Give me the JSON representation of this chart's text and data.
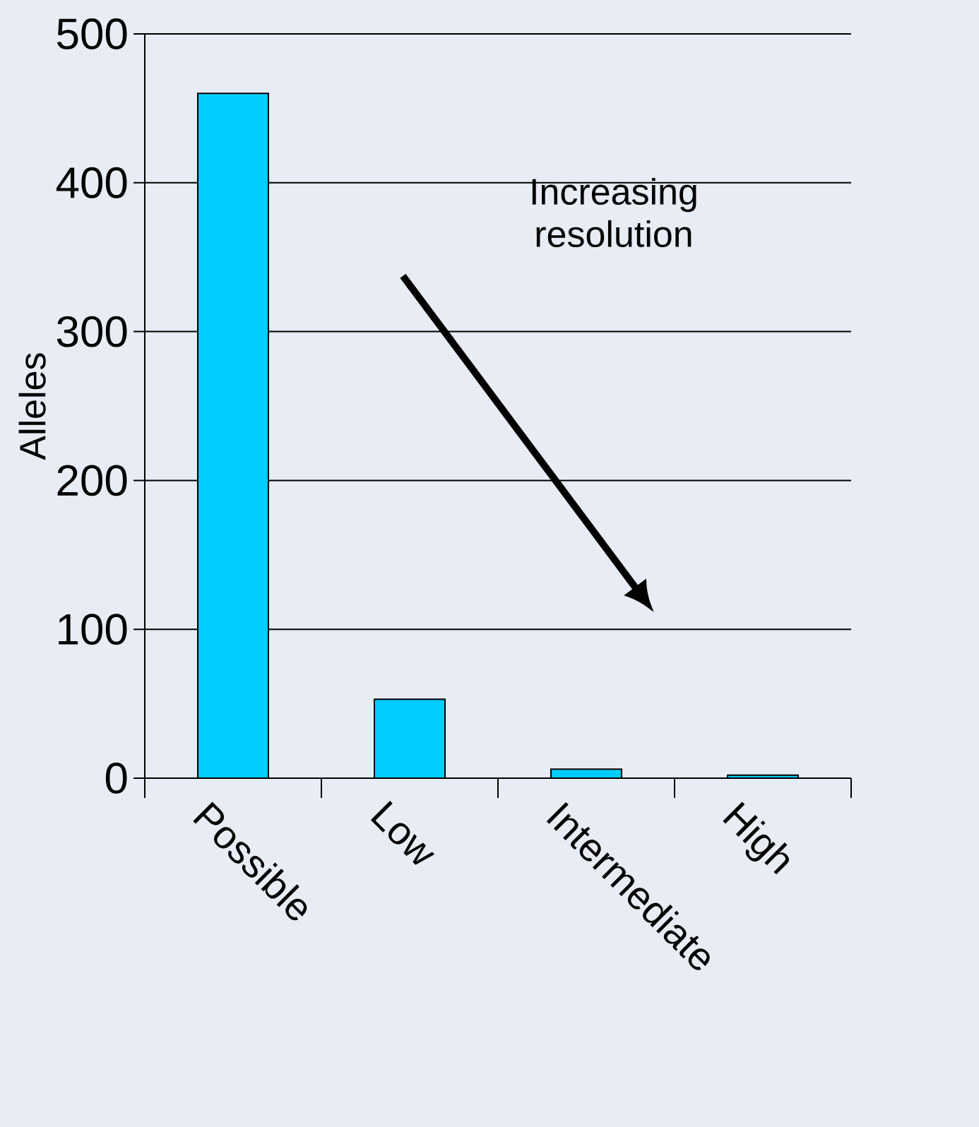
{
  "chart_data": {
    "type": "bar",
    "ylabel": "Alleles",
    "categories": [
      "Possible",
      "Low",
      "Intermediate",
      "High"
    ],
    "values": [
      460,
      53,
      6,
      2
    ],
    "color": "#00ccff",
    "ylim": [
      0,
      500
    ],
    "yticks": [
      0,
      100,
      200,
      300,
      400,
      500
    ],
    "grid": "y",
    "annotations": [
      "Increasing resolution"
    ]
  }
}
